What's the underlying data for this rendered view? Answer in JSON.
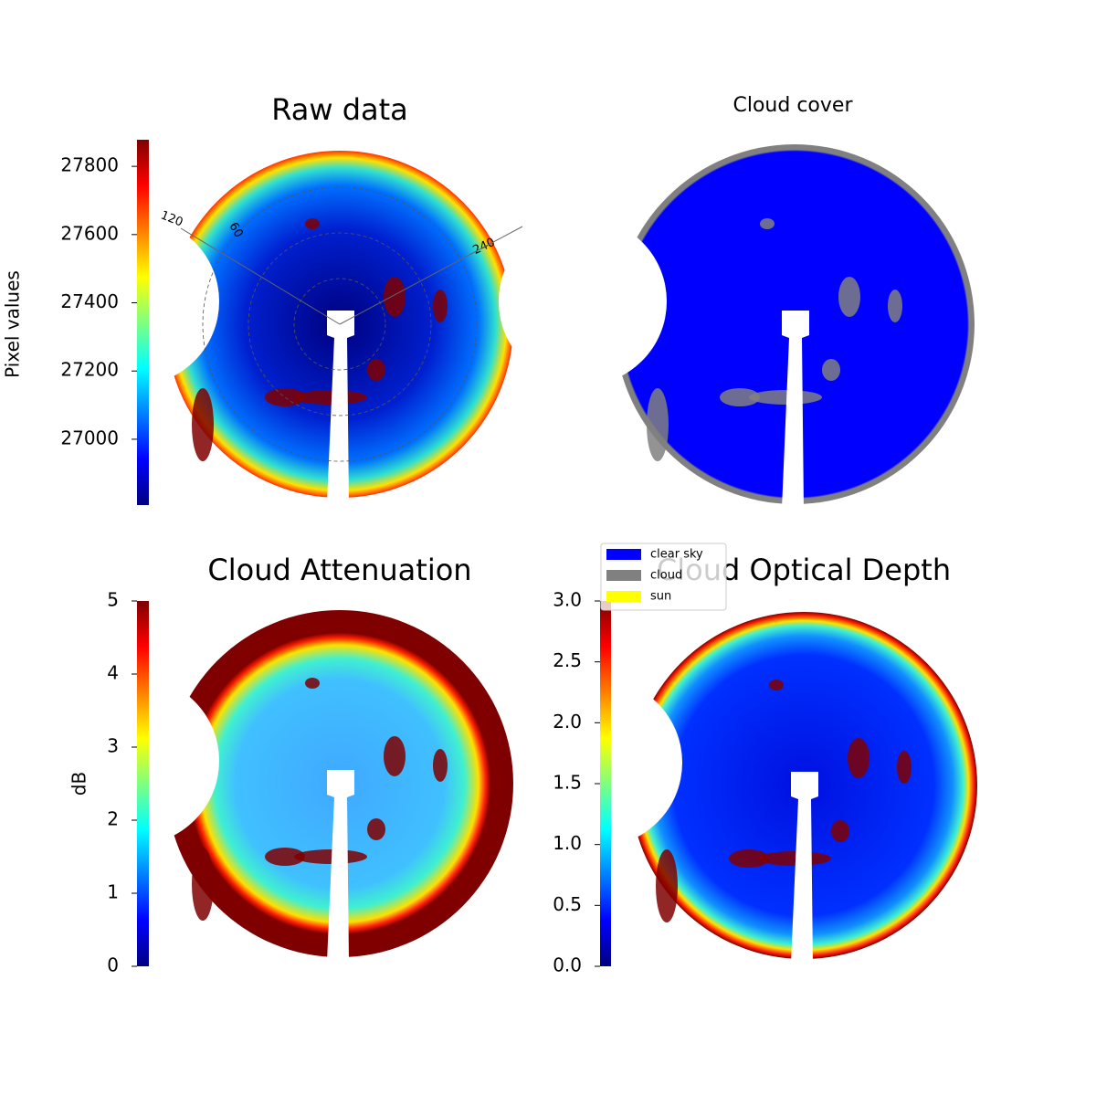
{
  "chart_data": [
    {
      "type": "image",
      "title": "Raw data",
      "annotations": [
        "120",
        "60",
        "240"
      ],
      "colorbar": {
        "label": "Pixel values",
        "colormap": "jet",
        "lim": [
          26807,
          27878
        ],
        "ticks": [
          27000,
          27200,
          27400,
          27600,
          27800
        ]
      }
    },
    {
      "type": "image",
      "title": "Cloud cover",
      "series": [
        {
          "name": "clear sky",
          "color": "#0000ff"
        },
        {
          "name": "cloud",
          "color": "#808080"
        },
        {
          "name": "sun",
          "color": "#ffff00"
        }
      ]
    },
    {
      "type": "image",
      "title": "Cloud Attenuation",
      "colorbar": {
        "label": "dB",
        "colormap": "jet",
        "lim": [
          0,
          5
        ],
        "ticks": [
          0,
          1,
          2,
          3,
          4,
          5
        ]
      }
    },
    {
      "type": "image",
      "title": "Cloud Optical Depth",
      "colorbar": {
        "colormap": "jet",
        "lim": [
          0,
          3
        ],
        "ticks": [
          {
            "value": 0,
            "label": "0.0"
          },
          {
            "value": 0.5,
            "label": "0.5"
          },
          {
            "value": 1,
            "label": "1.0"
          },
          {
            "value": 1.5,
            "label": "1.5"
          },
          {
            "value": 2,
            "label": "2.0"
          },
          {
            "value": 2.5,
            "label": "2.5"
          },
          {
            "value": 3,
            "label": "3.0"
          }
        ]
      }
    }
  ]
}
